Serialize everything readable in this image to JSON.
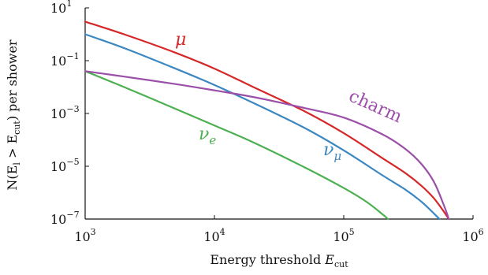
{
  "chart_data": {
    "type": "line",
    "xlabel_prefix": "Energy threshold ",
    "xlabel_var": "E",
    "xlabel_sub": "cut",
    "ylabel_prefix": "N(E",
    "ylabel_sub1": "l",
    "ylabel_mid": " > E",
    "ylabel_sub2": "cut",
    "ylabel_suffix": ") per shower",
    "x_scale": "log",
    "y_scale": "log",
    "xlim": [
      1000,
      1000000
    ],
    "ylim": [
      1e-07,
      10
    ],
    "grid": false,
    "x_ticks": [
      {
        "value": 1000,
        "base": "10",
        "exp": "3"
      },
      {
        "value": 10000,
        "base": "10",
        "exp": "4"
      },
      {
        "value": 100000,
        "base": "10",
        "exp": "5"
      },
      {
        "value": 1000000,
        "base": "10",
        "exp": "6"
      }
    ],
    "y_ticks": [
      {
        "value": 10,
        "base": "10",
        "exp": "1"
      },
      {
        "value": 0.1,
        "base": "10",
        "exp": "−1"
      },
      {
        "value": 0.001,
        "base": "10",
        "exp": "−3"
      },
      {
        "value": 1e-05,
        "base": "10",
        "exp": "−5"
      },
      {
        "value": 1e-07,
        "base": "10",
        "exp": "−7"
      }
    ],
    "series": [
      {
        "name": "μ",
        "label_sub": "",
        "color": "#d62728",
        "x": [
          1000,
          2000,
          5000,
          10000,
          20000,
          50000,
          100000,
          200000,
          300000,
          400000,
          500000,
          600000,
          650000
        ],
        "y": [
          3,
          1.0,
          0.2,
          0.05,
          0.01,
          0.0012,
          0.00018,
          2e-05,
          5.5e-06,
          1.8e-06,
          6e-07,
          1.8e-07,
          1e-07
        ]
      },
      {
        "name": "ν",
        "label_sub": "μ",
        "color": "#3a87c1",
        "x": [
          1000,
          2000,
          5000,
          10000,
          20000,
          50000,
          100000,
          200000,
          300000,
          400000,
          500000,
          550000
        ],
        "y": [
          1.0,
          0.3,
          0.05,
          0.012,
          0.0025,
          0.00028,
          4e-05,
          4.5e-06,
          1.3e-06,
          4.5e-07,
          1.6e-07,
          1e-07
        ]
      },
      {
        "name": "ν",
        "label_sub": "e",
        "color": "#4caf50",
        "x": [
          1000,
          2000,
          5000,
          10000,
          20000,
          50000,
          100000,
          150000,
          200000,
          220000
        ],
        "y": [
          0.04,
          0.01,
          0.0015,
          0.00035,
          8e-05,
          9e-06,
          1.5e-06,
          4.5e-07,
          1.5e-07,
          1e-07
        ]
      },
      {
        "name": "charm",
        "label_sub": "",
        "color": "#9b4fa8",
        "x": [
          1000,
          2000,
          5000,
          10000,
          20000,
          50000,
          100000,
          200000,
          300000,
          400000,
          500000,
          600000,
          650000
        ],
        "y": [
          0.04,
          0.025,
          0.013,
          0.0075,
          0.0042,
          0.0016,
          0.0007,
          0.00016,
          4.5e-05,
          1.2e-05,
          2.5e-06,
          3e-07,
          1e-07
        ]
      }
    ]
  }
}
